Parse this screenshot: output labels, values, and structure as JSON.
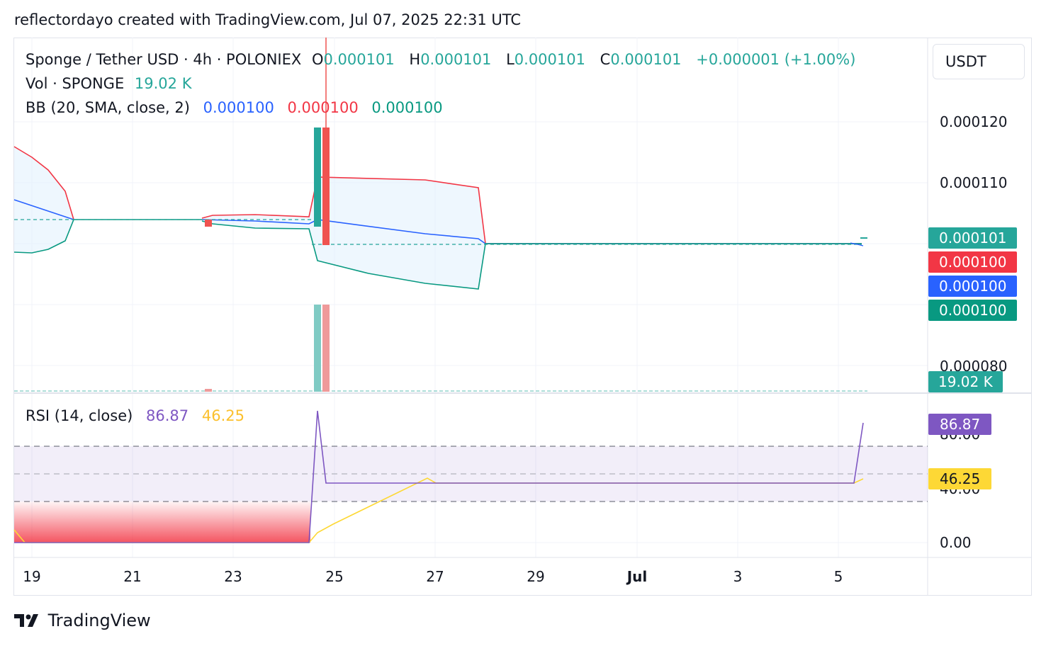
{
  "header": {
    "attribution": "reflectordayo created with TradingView.com, Jul 07, 2025 22:31 UTC"
  },
  "legend": {
    "symbol": "Sponge / Tether USD · 4h · POLONIEX",
    "o_label": "O",
    "o_value": "0.000101",
    "h_label": "H",
    "h_value": "0.000101",
    "l_label": "L",
    "l_value": "0.000101",
    "c_label": "C",
    "c_value": "0.000101",
    "change": "+0.000001 (+1.00%)",
    "vol_label": "Vol · SPONGE",
    "vol_value": "19.02 K",
    "bb_label": "BB (20, SMA, close, 2)",
    "bb_basis": "0.000100",
    "bb_upper": "0.000100",
    "bb_lower": "0.000100",
    "rsi_label": "RSI (14, close)",
    "rsi_value": "86.87",
    "rsi_ma": "46.25"
  },
  "price_axis": {
    "unit": "USDT",
    "ticks": [
      "0.000120",
      "0.000110",
      "0.000080"
    ],
    "labels": {
      "last_price": "0.000101",
      "bb_upper": "0.000100",
      "bb_basis": "0.000100",
      "bb_lower": "0.000100",
      "volume": "19.02 K"
    }
  },
  "rsi_axis": {
    "ticks": [
      "80.00",
      "40.00",
      "0.00"
    ],
    "labels": {
      "rsi": "86.87",
      "rsi_ma": "46.25"
    }
  },
  "time_axis": {
    "ticks": [
      "19",
      "21",
      "23",
      "25",
      "27",
      "29",
      "Jul",
      "3",
      "5"
    ]
  },
  "branding": {
    "logo_text": "TradingView"
  },
  "colors": {
    "up": "#26a69a",
    "down": "#ef5350",
    "bb_basis": "#2962ff",
    "bb_upper": "#f23645",
    "bb_lower": "#089981",
    "rsi": "#7e57c2",
    "rsi_ma": "#fdd835",
    "bb_fill": "#e3f2fd"
  },
  "chart_data": [
    {
      "type": "candlestick",
      "title": "Sponge / Tether USD · 4h · POLONIEX",
      "x_start": "Jun 19",
      "x_end": "Jul 5",
      "y_ticks": [
        0.00012,
        0.00011,
        8e-05
      ],
      "candles": [
        {
          "date": "Jun 22",
          "open": 0.000104,
          "high": 0.000104,
          "low": 0.000103,
          "close": 0.000103,
          "direction": "down"
        },
        {
          "date": "Jun 24",
          "open": 0.000103,
          "high": 0.000119,
          "low": 0.000103,
          "close": 0.000119,
          "direction": "up"
        },
        {
          "date": "Jun 24",
          "open": 0.000119,
          "high": 0.000135,
          "low": 0.0001,
          "close": 0.0001,
          "direction": "down"
        },
        {
          "date": "Jul 5",
          "open": 0.0001,
          "high": 0.000101,
          "low": 0.0001,
          "close": 0.000101,
          "direction": "up"
        }
      ],
      "bollinger": {
        "x": [
          "Jun 19",
          "Jun 20",
          "Jun 22",
          "Jun 24",
          "Jun 27",
          "Jun 28",
          "Jul 5"
        ],
        "upper": [
          0.000116,
          0.000104,
          0.000105,
          0.000111,
          0.000109,
          0.0001,
          0.0001
        ],
        "basis": [
          0.000107,
          0.000104,
          0.000104,
          0.000104,
          0.0001005,
          0.0001,
          0.0001
        ],
        "lower": [
          0.0001,
          0.000104,
          0.000103,
          9.7e-05,
          9.25e-05,
          0.0001,
          0.0001
        ]
      },
      "volume": {
        "last": "19.02 K",
        "bars": [
          {
            "date": "Jun 24",
            "direction": "up"
          },
          {
            "date": "Jun 24",
            "direction": "down"
          }
        ]
      }
    },
    {
      "type": "line",
      "title": "RSI (14, close)",
      "ylim": [
        0,
        100
      ],
      "bands": [
        80,
        50,
        40
      ],
      "x": [
        "Jun 19",
        "Jun 24",
        "Jun 24",
        "Jun 25",
        "Jun 27",
        "Jul 5",
        "Jul 5"
      ],
      "series": [
        {
          "name": "RSI",
          "values": [
            0,
            0,
            97,
            43,
            43,
            43,
            86.87
          ]
        },
        {
          "name": "RSI MA",
          "values": [
            0,
            0,
            7,
            25,
            46,
            43,
            46.25
          ]
        }
      ]
    }
  ]
}
